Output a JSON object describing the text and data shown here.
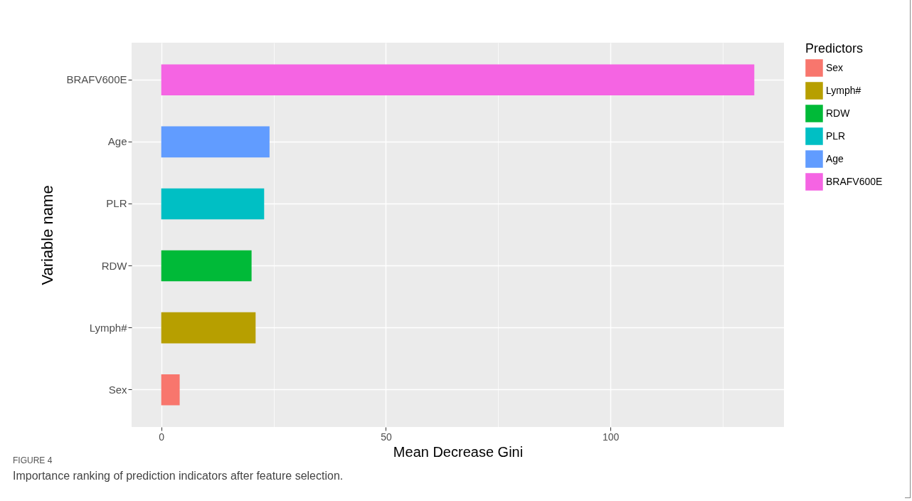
{
  "chart_data": {
    "type": "bar",
    "orientation": "horizontal",
    "xlabel": "Mean Decrease Gini",
    "ylabel": "Variable name",
    "legend_title": "Predictors",
    "categories": [
      "BRAFV600E",
      "Age",
      "PLR",
      "RDW",
      "Lymph#",
      "Sex"
    ],
    "series": [
      {
        "name": "Sex",
        "color": "#f8766d",
        "values": [
          null,
          null,
          null,
          null,
          null,
          4.1
        ]
      },
      {
        "name": "Lymph#",
        "color": "#b79f00",
        "values": [
          null,
          null,
          null,
          null,
          21.0,
          null
        ]
      },
      {
        "name": "RDW",
        "color": "#00ba38",
        "values": [
          null,
          null,
          null,
          20.1,
          null,
          null
        ]
      },
      {
        "name": "PLR",
        "color": "#00bfc4",
        "values": [
          null,
          null,
          22.9,
          null,
          null,
          null
        ]
      },
      {
        "name": "Age",
        "color": "#619cff",
        "values": [
          null,
          24.1,
          null,
          null,
          null,
          null
        ]
      },
      {
        "name": "BRAFV600E",
        "color": "#f564e3",
        "values": [
          132.0,
          null,
          null,
          null,
          null,
          null
        ]
      }
    ],
    "xlim": [
      -6.6,
      138.6
    ],
    "xticks": [
      0,
      {
        "value": 25,
        "label": null
      },
      50,
      {
        "value": 75,
        "label": null
      },
      100,
      {
        "value": 125,
        "label": null
      }
    ],
    "grid": true,
    "legend": "right",
    "annotations": [
      "FIGURE 4",
      "Importance ranking of prediction indicators after feature selection."
    ]
  }
}
